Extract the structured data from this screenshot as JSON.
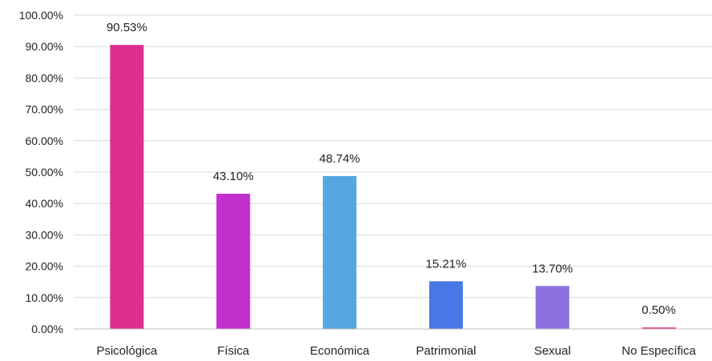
{
  "chart_data": {
    "type": "bar",
    "title": "",
    "xlabel": "",
    "ylabel": "",
    "categories": [
      "Psicológica",
      "Física",
      "Económica",
      "Patrimonial",
      "Sexual",
      "No Específica"
    ],
    "values": [
      90.53,
      43.1,
      48.74,
      15.21,
      13.7,
      0.5
    ],
    "data_labels": [
      "90.53%",
      "43.10%",
      "48.74%",
      "15.21%",
      "13.70%",
      "0.50%"
    ],
    "colors": [
      "#DF2F8D",
      "#C330CC",
      "#55A8DF",
      "#4877E6",
      "#8B70E0",
      "#E23C8F"
    ],
    "ylim": [
      0,
      100
    ],
    "yticks": [
      0,
      10,
      20,
      30,
      40,
      50,
      60,
      70,
      80,
      90,
      100
    ],
    "ytick_labels": [
      "0.00%",
      "10.00%",
      "20.00%",
      "30.00%",
      "40.00%",
      "50.00%",
      "60.00%",
      "70.00%",
      "80.00%",
      "90.00%",
      "100.00%"
    ],
    "grid": true,
    "grid_color": "#D9D9D9",
    "axis_color": "#BFBFBF"
  }
}
